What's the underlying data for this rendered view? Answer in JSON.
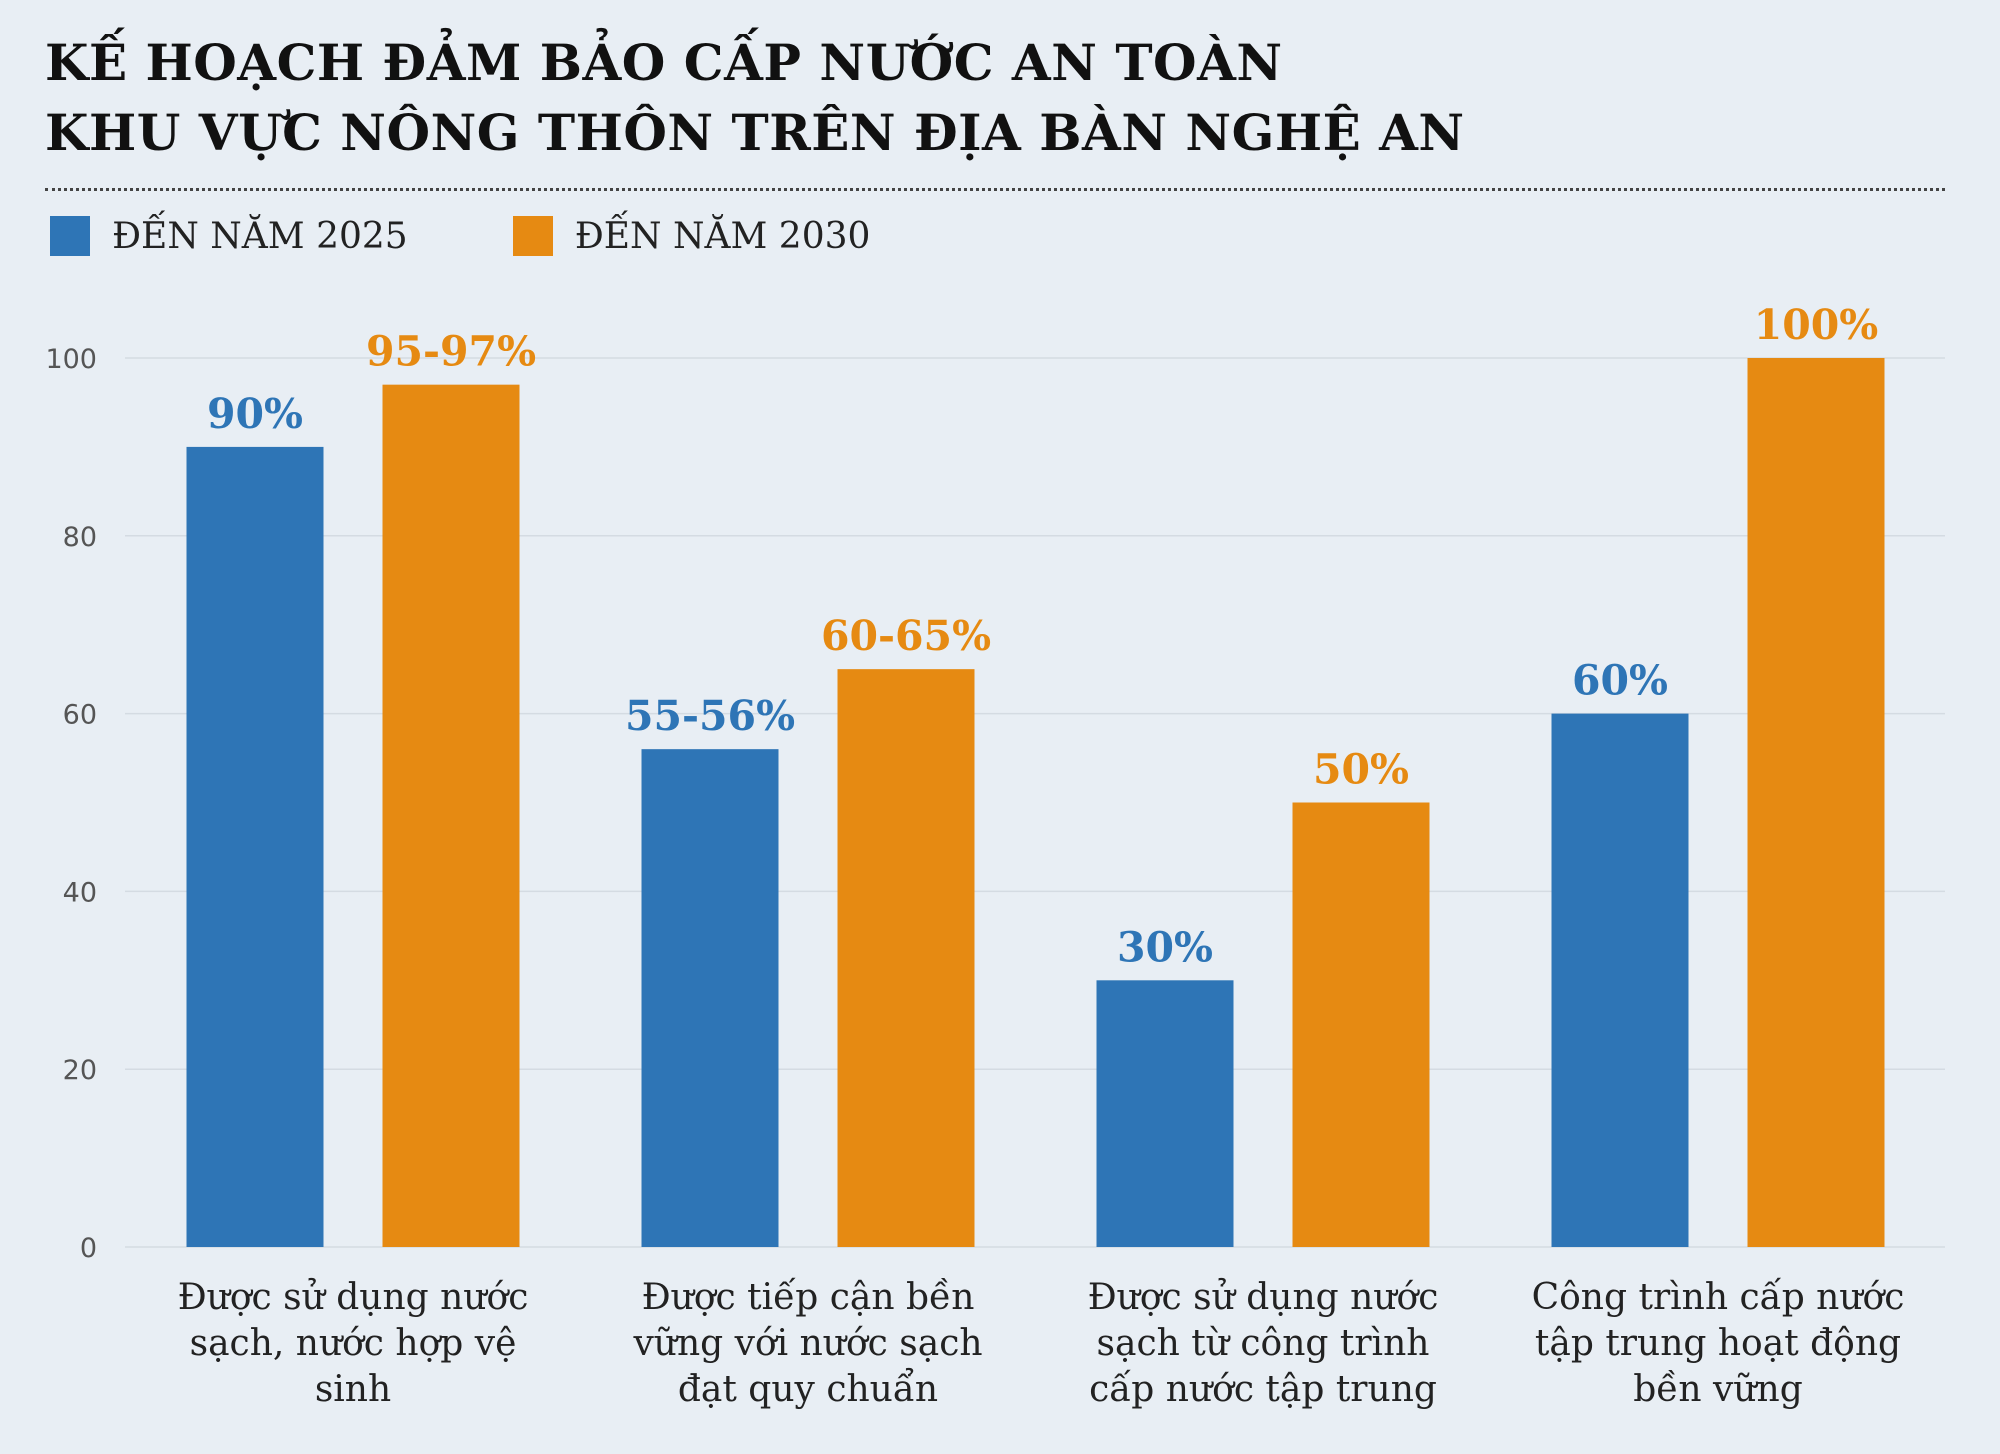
{
  "title_lines": [
    "KẾ HOẠCH ĐẢM BẢO CẤP NƯỚC AN TOÀN",
    "KHU VỰC NÔNG THÔN TRÊN ĐỊA BÀN NGHỆ AN"
  ],
  "colors": {
    "series_2025": "#2e75b6",
    "series_2030": "#e68a12",
    "grid": "#d4dbe2",
    "axis_text": "#555555"
  },
  "chart_data": {
    "type": "bar",
    "title": "KẾ HOẠCH ĐẢM BẢO CẤP NƯỚC AN TOÀN KHU VỰC NÔNG THÔN TRÊN ĐỊA BÀN NGHỆ AN",
    "categories": [
      "Được sử dụng nước sạch, nước hợp vệ sinh",
      "Được tiếp cận bền vững với nước sạch đạt quy chuẩn",
      "Được sử dụng nước sạch từ công trình cấp nước tập trung",
      "Công trình cấp nước tập trung hoạt động bền vững"
    ],
    "category_label_lines": [
      [
        "Được sử dụng nước",
        "sạch, nước hợp vệ",
        "sinh"
      ],
      [
        "Được tiếp cận bền",
        "vững với nước sạch",
        "đạt quy chuẩn"
      ],
      [
        "Được sử dụng nước",
        "sạch từ công trình",
        "cấp nước tập trung"
      ],
      [
        "Công trình cấp nước",
        "tập trung hoạt động",
        "bền vững"
      ]
    ],
    "series": [
      {
        "name": "ĐẾN NĂM 2025",
        "values": [
          90,
          56,
          30,
          60
        ],
        "labels": [
          "90%",
          "55-56%",
          "30%",
          "60%"
        ]
      },
      {
        "name": "ĐẾN NĂM 2030",
        "values": [
          97,
          65,
          50,
          100
        ],
        "labels": [
          "95-97%",
          "60-65%",
          "50%",
          "100%"
        ]
      }
    ],
    "ylim": [
      0,
      100
    ],
    "yticks": [
      0,
      20,
      40,
      60,
      80,
      100
    ],
    "grid": true,
    "legend_position": "top-left"
  }
}
